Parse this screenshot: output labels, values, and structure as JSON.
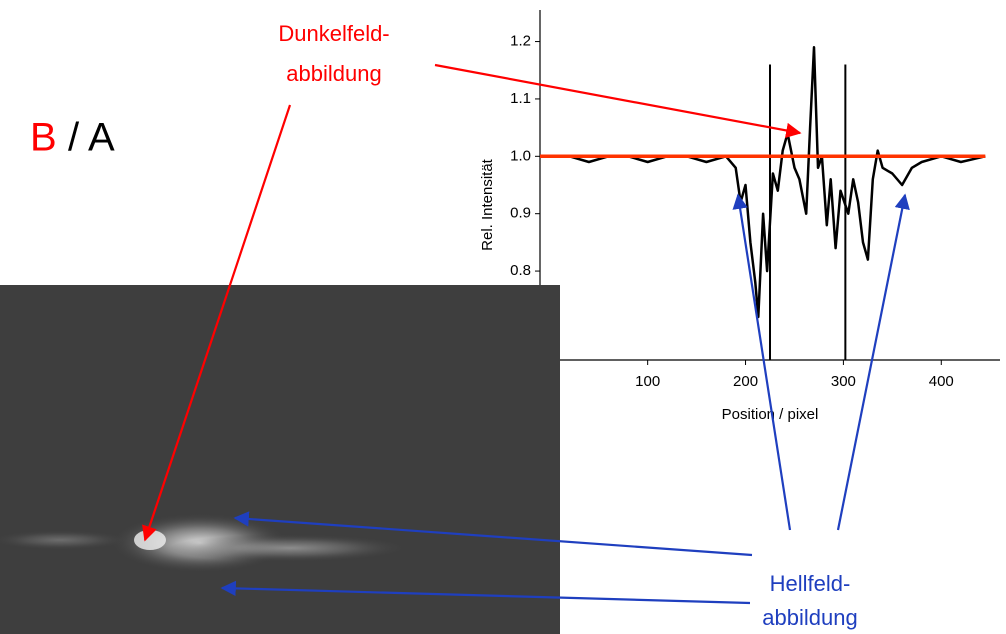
{
  "chart_data": {
    "type": "line",
    "x_label": "Position / pixel",
    "y_label": "Rel. Intensität",
    "xlim": [
      -10,
      460
    ],
    "ylim": [
      0.645,
      1.255
    ],
    "xticks": [
      100,
      200,
      300,
      400
    ],
    "yticks": [
      0.8,
      0.9,
      {
        "value": 1,
        "label": "1.0"
      },
      1.1,
      1.2
    ],
    "series": [
      {
        "color": "#000000",
        "x": [
          0,
          20,
          40,
          60,
          80,
          100,
          120,
          140,
          160,
          180,
          190,
          195,
          200,
          205,
          210,
          213,
          218,
          222,
          228,
          233,
          238,
          243,
          250,
          255,
          262,
          266,
          270,
          274,
          278,
          283,
          287,
          292,
          297,
          305,
          310,
          315,
          320,
          325,
          330,
          335,
          340,
          350,
          360,
          370,
          380,
          400,
          420,
          445
        ],
        "values": [
          1.0,
          1.0,
          0.99,
          1.0,
          1.0,
          0.99,
          1.0,
          1.0,
          0.99,
          1.0,
          0.98,
          0.92,
          0.95,
          0.85,
          0.78,
          0.72,
          0.9,
          0.8,
          0.97,
          0.94,
          1.01,
          1.04,
          0.98,
          0.96,
          0.9,
          1.05,
          1.19,
          0.98,
          1.0,
          0.88,
          0.96,
          0.84,
          0.94,
          0.9,
          0.96,
          0.92,
          0.85,
          0.82,
          0.96,
          1.01,
          0.98,
          0.97,
          0.95,
          0.98,
          0.99,
          1.0,
          0.99,
          1.0
        ]
      },
      {
        "color": "#ff3300",
        "x": [
          -10,
          445
        ],
        "values": [
          1,
          1
        ]
      }
    ],
    "vlines": [
      225,
      302
    ],
    "annotations": [
      {
        "color": "#ff0000",
        "lines": [
          "Dunkelfeld-",
          "abbildung"
        ]
      },
      {
        "color": "#1f3fbf",
        "lines": [
          "Hellfeld-",
          "abbildung"
        ]
      }
    ],
    "label_parts": [
      {
        "text": "B",
        "color": "#ff0000"
      },
      {
        "text": "/ A",
        "color": "#000000"
      }
    ]
  }
}
